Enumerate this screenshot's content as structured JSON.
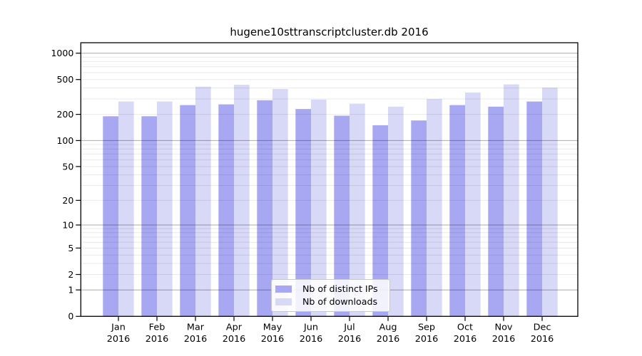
{
  "chart_data": {
    "type": "bar",
    "title": "hugene10sttranscriptcluster.db 2016",
    "categories": [
      "Jan 2016",
      "Feb 2016",
      "Mar 2016",
      "Apr 2016",
      "May 2016",
      "Jun 2016",
      "Jul 2016",
      "Aug 2016",
      "Sep 2016",
      "Oct 2016",
      "Nov 2016",
      "Dec 2016"
    ],
    "series": [
      {
        "name": "Nb of distinct IPs",
        "color": "#a7a7f2",
        "values": [
          190,
          190,
          255,
          260,
          290,
          230,
          193,
          150,
          170,
          255,
          245,
          280
        ]
      },
      {
        "name": "Nb of downloads",
        "color": "#d8d8f7",
        "values": [
          280,
          280,
          415,
          435,
          390,
          295,
          265,
          245,
          300,
          355,
          440,
          405
        ]
      }
    ],
    "xlabel": "",
    "ylabel": "",
    "yscale": "log1p",
    "yticks": [
      0,
      1,
      2,
      5,
      10,
      20,
      50,
      100,
      200,
      500,
      1000
    ],
    "ylim": [
      0,
      1317
    ],
    "grid": "horizontal major and minor, drawn over bars",
    "legend_position": "lower center"
  },
  "colors": {
    "bar_distinct_ips": "#a7a7f2",
    "bar_downloads": "#d8d8f7",
    "grid_major": "#ababab",
    "grid_minor": "#e9e9e9",
    "axis": "#000000",
    "text": "#000000",
    "background": "#ffffff",
    "legend_border": "#c8c8c8"
  }
}
